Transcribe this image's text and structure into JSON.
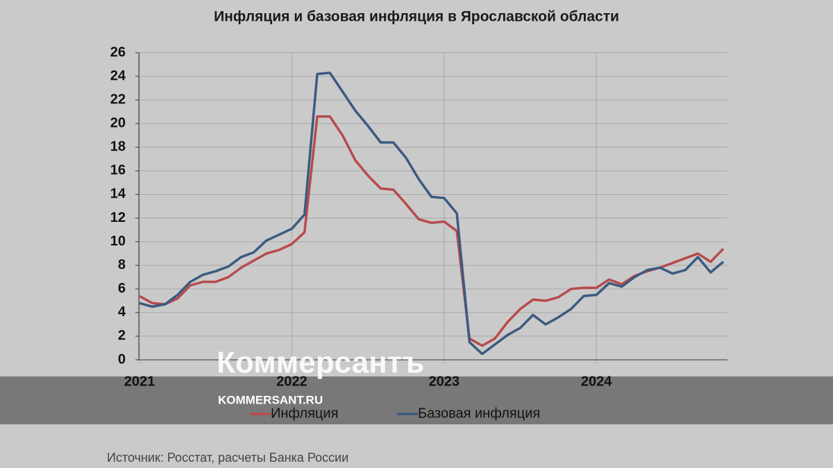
{
  "chart_data": {
    "type": "line",
    "title": "Инфляция и базовая инфляция в Ярославской области",
    "categories": [
      "2021",
      null,
      null,
      null,
      null,
      null,
      null,
      null,
      null,
      null,
      null,
      null,
      "2022",
      null,
      null,
      null,
      null,
      null,
      null,
      null,
      null,
      null,
      null,
      null,
      "2023",
      null,
      null,
      null,
      null,
      null,
      null,
      null,
      null,
      null,
      null,
      null,
      "2024",
      null,
      null,
      null,
      null,
      null,
      null,
      null,
      null,
      null,
      null
    ],
    "series": [
      {
        "name": "Инфляция",
        "color": "#b84a4c",
        "values": [
          5.4,
          4.8,
          4.7,
          5.2,
          6.3,
          6.6,
          6.6,
          7.0,
          7.8,
          8.4,
          9.0,
          9.3,
          9.8,
          10.8,
          20.6,
          20.6,
          19.0,
          16.9,
          15.6,
          14.5,
          14.4,
          13.2,
          11.9,
          11.6,
          11.7,
          10.9,
          1.8,
          1.2,
          1.8,
          3.2,
          4.3,
          5.1,
          5.0,
          5.3,
          6.0,
          6.1,
          6.1,
          6.8,
          6.4,
          7.1,
          7.5,
          7.8,
          8.2,
          8.6,
          9.0,
          8.3,
          9.4
        ]
      },
      {
        "name": "Базовая инфляция",
        "color": "#3b5a80",
        "values": [
          4.8,
          4.5,
          4.7,
          5.5,
          6.6,
          7.2,
          7.5,
          7.9,
          8.7,
          9.1,
          10.1,
          10.6,
          11.1,
          12.3,
          24.2,
          24.3,
          22.7,
          21.1,
          19.8,
          18.4,
          18.4,
          17.1,
          15.3,
          13.8,
          13.7,
          12.4,
          1.5,
          0.5,
          1.3,
          2.1,
          2.7,
          3.8,
          3.0,
          3.6,
          4.3,
          5.4,
          5.5,
          6.5,
          6.2,
          7.0,
          7.6,
          7.8,
          7.3,
          7.6,
          8.7,
          7.4,
          8.3
        ]
      }
    ],
    "ylim": [
      0,
      26
    ],
    "yticks": [
      0,
      2,
      4,
      6,
      8,
      10,
      12,
      14,
      16,
      18,
      20,
      22,
      24,
      26
    ],
    "grid": true,
    "watermark": "Коммерсантъ",
    "watermark_url": "KOMMERSANT.RU",
    "source": "Источник: Росстат, расчеты Банка России"
  }
}
